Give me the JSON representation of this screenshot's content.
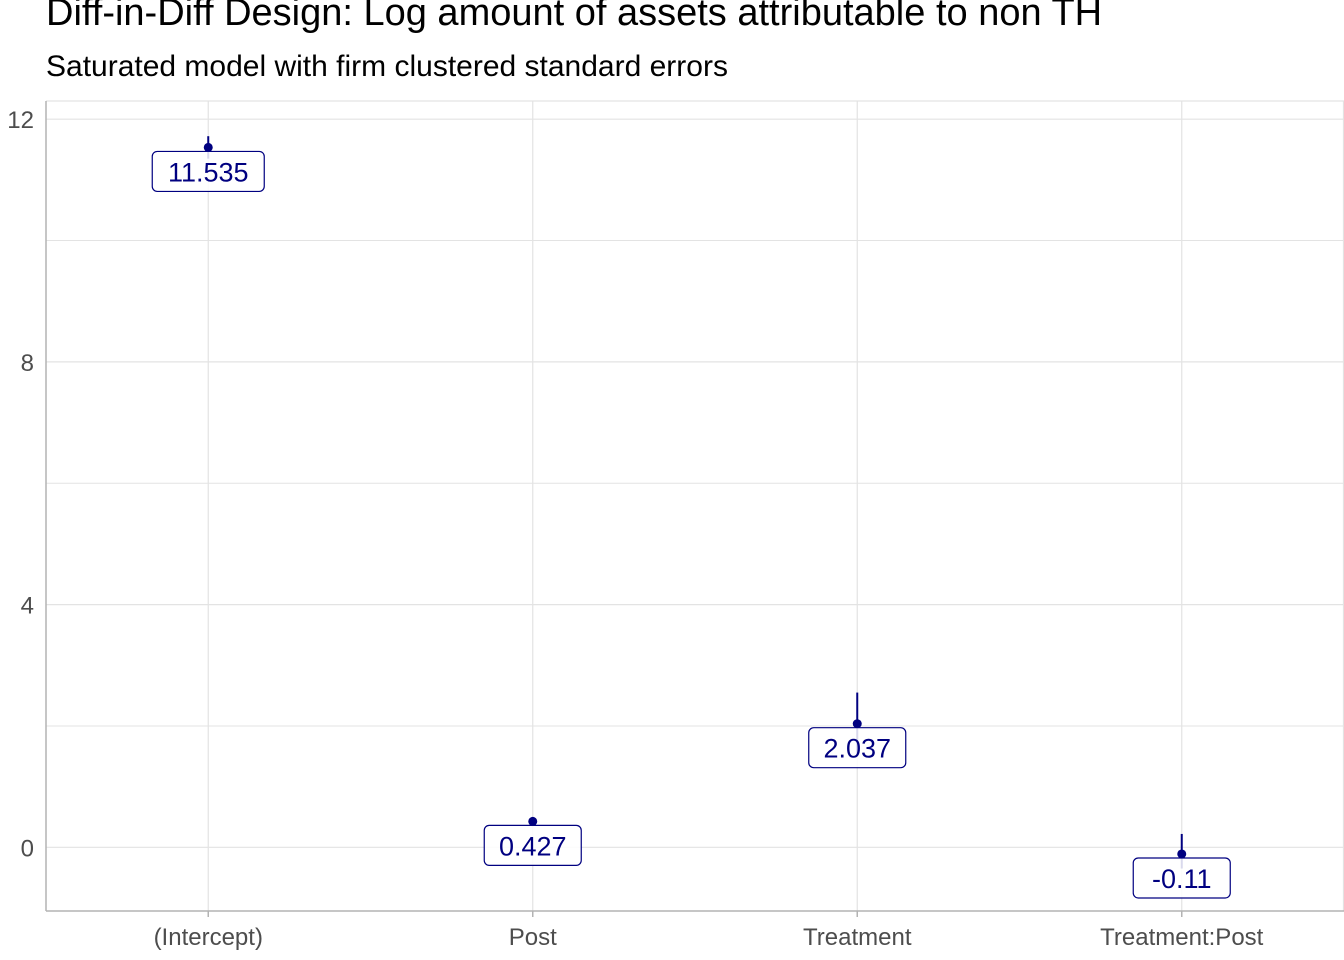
{
  "chart_data": {
    "type": "scatter",
    "title": "Diff-in-Diff Design: Log amount of assets attributable to non TH",
    "subtitle": "Saturated model with firm clustered standard errors",
    "xlabel": "",
    "ylabel": "",
    "categories": [
      "(Intercept)",
      "Post",
      "Treatment",
      "Treatment:Post"
    ],
    "estimates": [
      11.535,
      0.427,
      2.037,
      -0.11
    ],
    "labels": [
      "11.535",
      "0.427",
      "2.037",
      "-0.11"
    ],
    "ci_low": [
      11.35,
      0.35,
      1.55,
      -0.35
    ],
    "ci_high": [
      11.72,
      0.5,
      2.55,
      0.22
    ],
    "ylim": [
      -1.05,
      12.3
    ],
    "yticks": [
      0,
      4,
      8,
      12
    ],
    "yminor": [
      2,
      6,
      10
    ],
    "grid": true,
    "legend": "none",
    "colors": {
      "point": "#000080",
      "grid": "#e3e3e3",
      "axis": "#b3b3b3",
      "label_border": "#000080"
    }
  }
}
